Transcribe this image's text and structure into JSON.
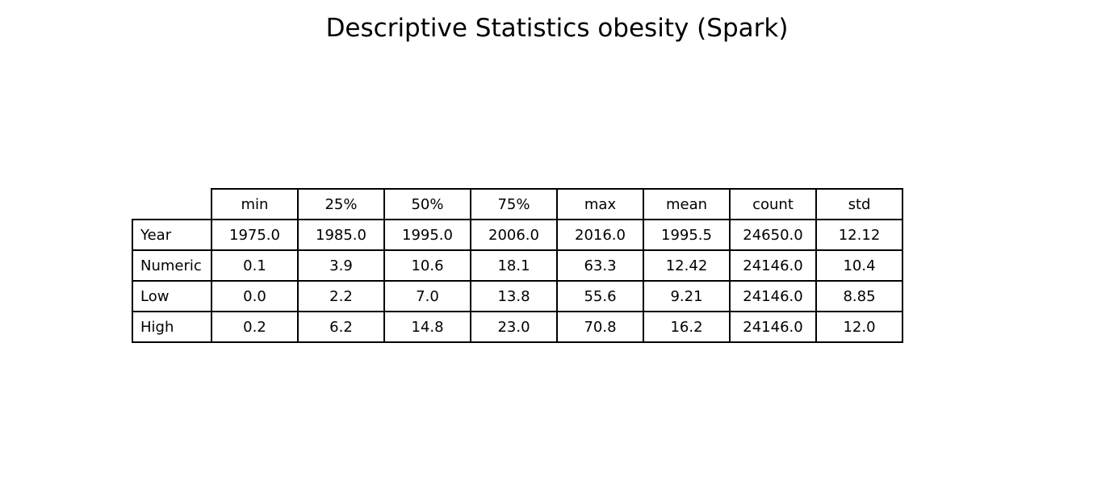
{
  "chart_data": {
    "type": "table",
    "title": "Descriptive Statistics obesity (Spark)",
    "columns": [
      "min",
      "25%",
      "50%",
      "75%",
      "max",
      "mean",
      "count",
      "std"
    ],
    "rows": [
      {
        "label": "Year",
        "values": [
          "1975.0",
          "1985.0",
          "1995.0",
          "2006.0",
          "2016.0",
          "1995.5",
          "24650.0",
          "12.12"
        ]
      },
      {
        "label": "Numeric",
        "values": [
          "0.1",
          "3.9",
          "10.6",
          "18.1",
          "63.3",
          "12.42",
          "24146.0",
          "10.4"
        ]
      },
      {
        "label": "Low",
        "values": [
          "0.0",
          "2.2",
          "7.0",
          "13.8",
          "55.6",
          "9.21",
          "24146.0",
          "8.85"
        ]
      },
      {
        "label": "High",
        "values": [
          "0.2",
          "6.2",
          "14.8",
          "23.0",
          "70.8",
          "16.2",
          "24146.0",
          "12.0"
        ]
      }
    ]
  }
}
